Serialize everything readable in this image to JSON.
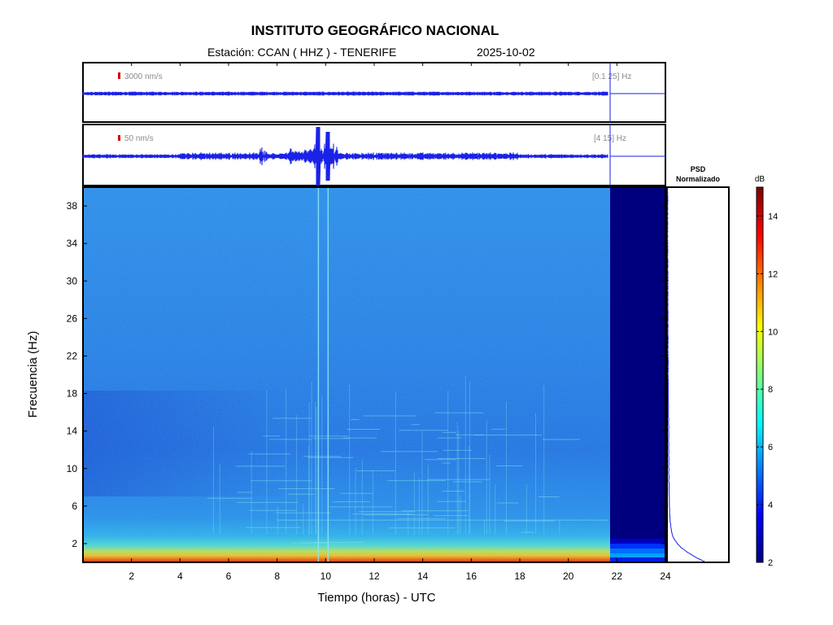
{
  "header": {
    "title": "INSTITUTO GEOGRÁFICO NACIONAL",
    "station": "Estación:  CCAN ( HHZ ) - TENERIFE",
    "date": "2025-10-02"
  },
  "traces": [
    {
      "scale_label": "3000 nm/s",
      "band_label": "[0.1 25] Hz"
    },
    {
      "scale_label": "50 nm/s",
      "band_label": "[4 15] Hz"
    }
  ],
  "colors": {
    "trace": "#1a22e6",
    "scale_marker": "#d40000",
    "no_data": "#00007f",
    "psd_line": "#1a22e6"
  },
  "psd": {
    "title_line1": "PSD",
    "title_line2": "Normalizado"
  },
  "colorbar": {
    "unit": "dB",
    "min": 2,
    "max": 15,
    "ticks": [
      2,
      4,
      6,
      8,
      10,
      12,
      14
    ]
  },
  "chart_data": {
    "type": "heatmap",
    "xlabel": "Tiempo (horas) - UTC",
    "ylabel": "Frecuencia  (Hz)",
    "xlim": [
      0,
      24
    ],
    "ylim": [
      0,
      40
    ],
    "xticks": [
      2,
      4,
      6,
      8,
      10,
      12,
      14,
      16,
      18,
      20,
      22,
      24
    ],
    "yticks": [
      2,
      6,
      10,
      14,
      18,
      22,
      26,
      30,
      34,
      38
    ],
    "data_end_hour": 21.65,
    "event_hours": [
      9.7,
      10.1
    ],
    "psd_profile": {
      "freq": [
        0,
        0.5,
        1,
        1.5,
        2,
        2.5,
        3,
        4,
        5,
        6,
        8,
        10,
        14,
        18,
        22,
        26,
        30,
        34,
        38,
        40
      ],
      "value": [
        1.0,
        0.75,
        0.55,
        0.38,
        0.26,
        0.18,
        0.13,
        0.09,
        0.07,
        0.06,
        0.05,
        0.045,
        0.04,
        0.03,
        0.025,
        0.02,
        0.02,
        0.015,
        0.015,
        0.015
      ]
    }
  }
}
